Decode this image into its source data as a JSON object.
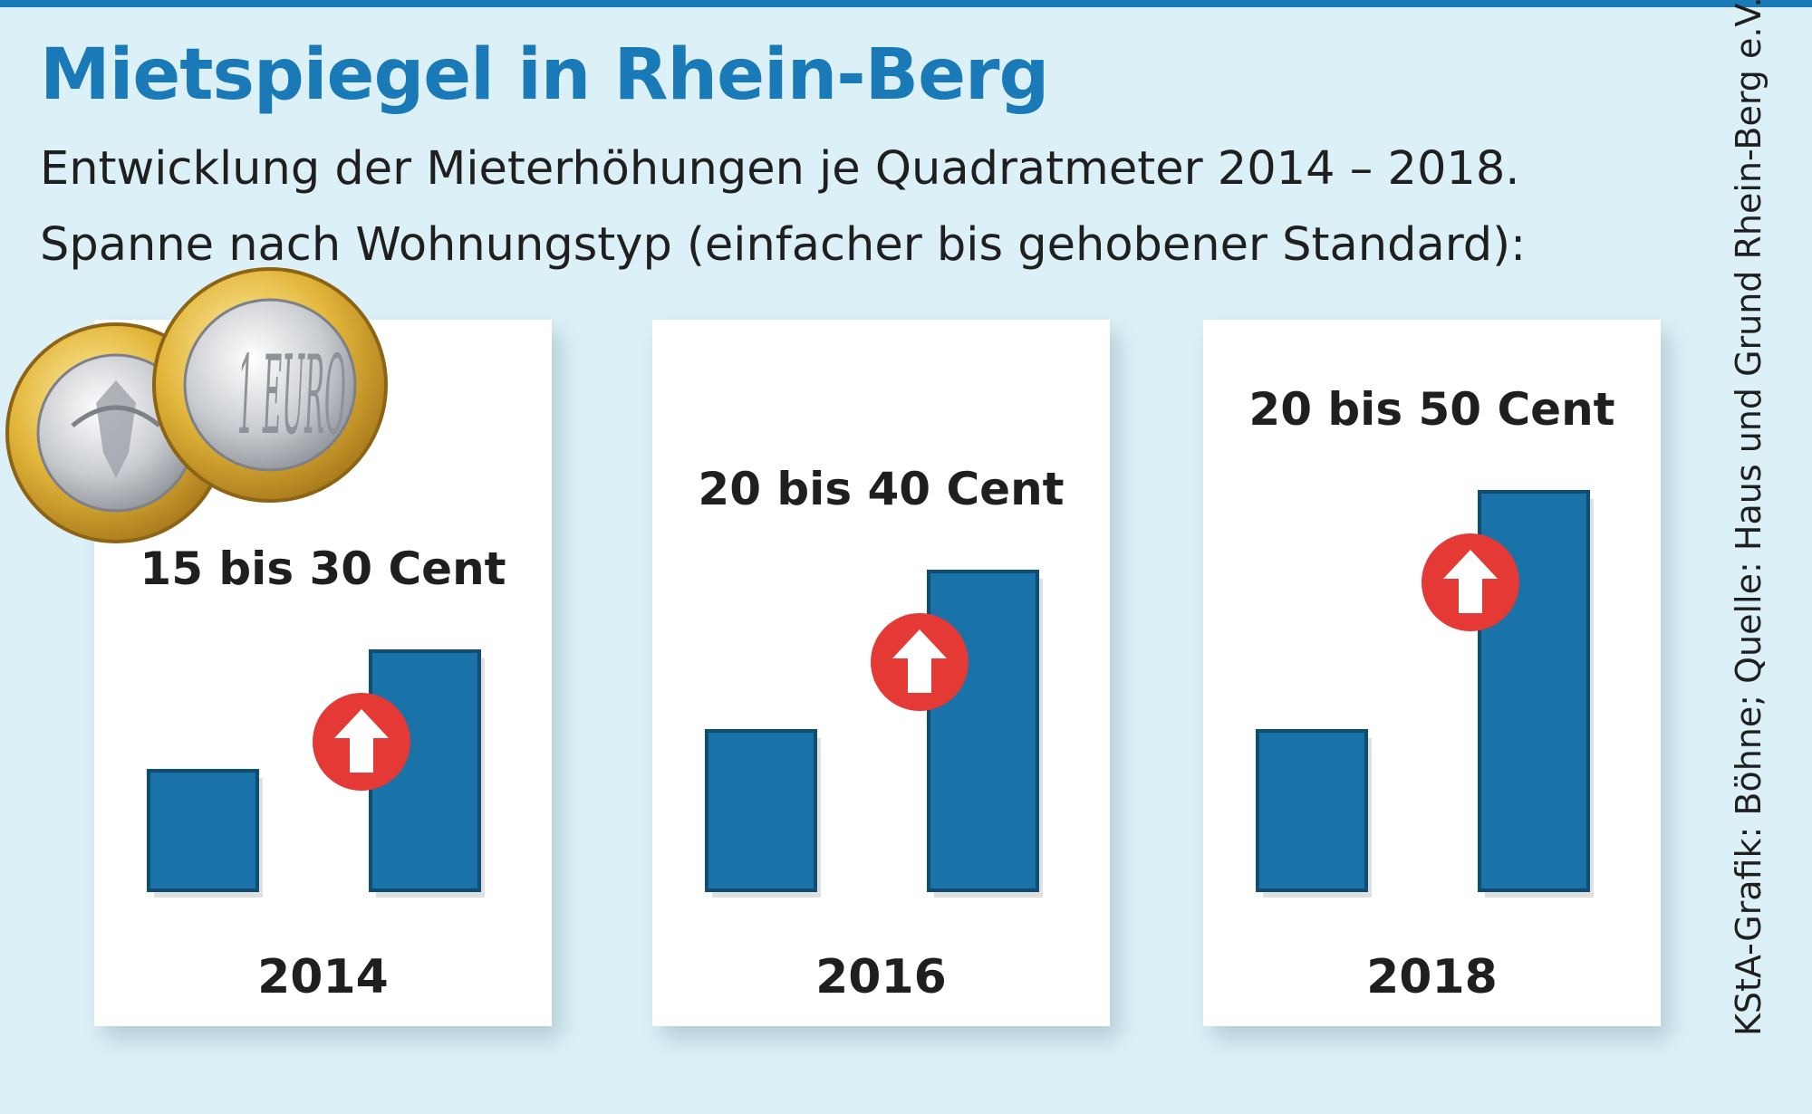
{
  "header": {
    "title": "Mietspiegel in Rhein-Berg",
    "subtitle_line1": "Entwicklung der Mieterhöhungen je Quadratmeter 2014 – 2018.",
    "subtitle_line2": "Spanne nach Wohnungstyp (einfacher bis gehobener Standard):"
  },
  "credit": "KStA-Grafik: Böhne; Quelle: Haus und Grund Rhein-Berg e.V.",
  "coin_logo": {
    "label": "1 EURO"
  },
  "colors": {
    "bar": "#1a73a8",
    "arrow_circle": "#e53935",
    "title": "#1a7ab8",
    "background": "#dcf0f7"
  },
  "chart_data": {
    "type": "bar",
    "unit": "Cent",
    "series": [
      "einfacher Standard",
      "gehobener Standard"
    ],
    "groups": [
      {
        "year": "2014",
        "label": "15 bis 30 Cent",
        "low": 15,
        "high": 30
      },
      {
        "year": "2016",
        "label": "20 bis 40 Cent",
        "low": 20,
        "high": 40
      },
      {
        "year": "2018",
        "label": "20 bis 50 Cent",
        "low": 20,
        "high": 50
      }
    ],
    "icon": "up-arrow-icon"
  }
}
